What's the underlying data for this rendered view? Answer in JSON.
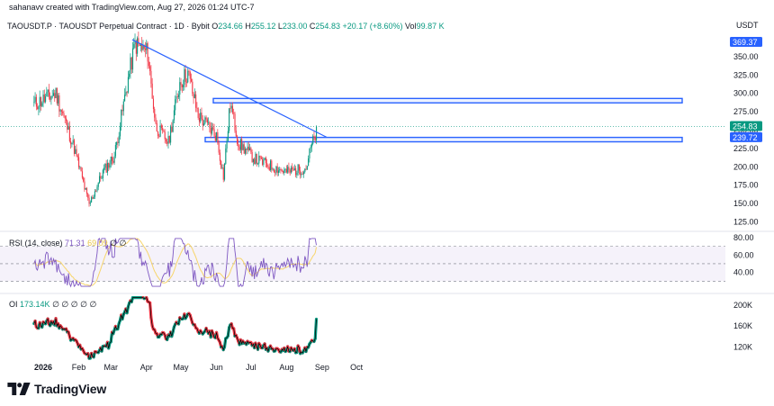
{
  "header": {
    "created_by": "sahanavv created with TradingView.com, Aug 27, 2026 01:24 UTC-7",
    "currency": "USDT"
  },
  "legend": {
    "symbol": "TAOUSDT.P · TAOUSDT Perpetual Contract · 1D · Bybit",
    "open_label": "O",
    "open": "234.66",
    "high_label": "H",
    "high": "255.12",
    "low_label": "L",
    "low": "233.00",
    "close_label": "C",
    "close": "254.83",
    "change": "+20.17 (+8.60%)",
    "vol_label": "Vol",
    "vol": "99.87 K"
  },
  "rsi_legend": {
    "label": "RSI (14, close)",
    "rsi": "71.31",
    "ma": "69.09"
  },
  "oi_legend": {
    "label": "OI",
    "value": "173.14K"
  },
  "brand": {
    "name": "TradingView"
  },
  "colors": {
    "up": "#089981",
    "down": "#f23645",
    "trendline": "#2962ff",
    "zone": "#2962ff",
    "rsi": "#7e57c2",
    "rsi_ma": "#f7d56b",
    "oi_up": "#089981",
    "oi_down": "#f23645",
    "oi_line": "#000000"
  },
  "chart_data": [
    {
      "type": "candlestick",
      "title": "TAOUSDT.P · TAOUSDT Perpetual Contract · 1D · Bybit",
      "y_ticks": [
        "350.00",
        "325.00",
        "300.00",
        "275.00",
        "250.00",
        "225.00",
        "200.00",
        "175.00",
        "150.00",
        "125.00"
      ],
      "y_range": [
        117,
        378
      ],
      "x_ticks": [
        "2026",
        "Feb",
        "Mar",
        "Apr",
        "May",
        "Jun",
        "Jul",
        "Aug",
        "Sep",
        "Oct"
      ],
      "price_labels": [
        {
          "text": "369.37",
          "value": 369.37
        },
        {
          "text": "254.83",
          "value": 254.83
        },
        {
          "text": "239.72",
          "value": 239.72
        }
      ],
      "key_points": [
        {
          "date": "Dec 24",
          "price": 285
        },
        {
          "date": "Jan 12",
          "price": 300
        },
        {
          "date": "Jan 28",
          "price": 225
        },
        {
          "date": "Feb 10",
          "price": 148
        },
        {
          "date": "Feb 22",
          "price": 193
        },
        {
          "date": "Mar 04",
          "price": 215
        },
        {
          "date": "Mar 16",
          "price": 320
        },
        {
          "date": "Mar 22",
          "price": 367
        },
        {
          "date": "Apr 02",
          "price": 355
        },
        {
          "date": "Apr 09",
          "price": 255
        },
        {
          "date": "Apr 20",
          "price": 233
        },
        {
          "date": "Apr 30",
          "price": 315
        },
        {
          "date": "May 07",
          "price": 328
        },
        {
          "date": "May 16",
          "price": 270
        },
        {
          "date": "Jun 01",
          "price": 242
        },
        {
          "date": "Jun 07",
          "price": 187
        },
        {
          "date": "Jun 13",
          "price": 287
        },
        {
          "date": "Jun 20",
          "price": 232
        },
        {
          "date": "Jul 05",
          "price": 210
        },
        {
          "date": "Jul 20",
          "price": 200
        },
        {
          "date": "Aug 01",
          "price": 193
        },
        {
          "date": "Aug 18",
          "price": 198
        },
        {
          "date": "Aug 22",
          "price": 225
        },
        {
          "date": "Aug 26",
          "price": 242
        },
        {
          "date": "Aug 27",
          "price": 254.83
        }
      ],
      "resistance_zone": {
        "from": 287,
        "to": 293
      },
      "support_zone": {
        "from": 234,
        "to": 240
      },
      "trendline": {
        "from": {
          "date": "Mar 18",
          "price": 373
        },
        "to": {
          "date": "Aug 30",
          "price": 240
        }
      }
    },
    {
      "type": "line",
      "title": "RSI (14, close)",
      "y_ticks": [
        "80.00",
        "60.00",
        "40.00"
      ],
      "y_range": [
        20,
        82
      ],
      "bands": [
        70,
        50,
        30
      ],
      "series": [
        {
          "name": "RSI",
          "last": 71.31
        },
        {
          "name": "MA",
          "last": 69.09
        }
      ]
    },
    {
      "type": "area",
      "title": "OI",
      "y_ticks": [
        "200K",
        "160K",
        "120K"
      ],
      "y_range": [
        95000,
        215000
      ],
      "last": "173.14K"
    }
  ]
}
